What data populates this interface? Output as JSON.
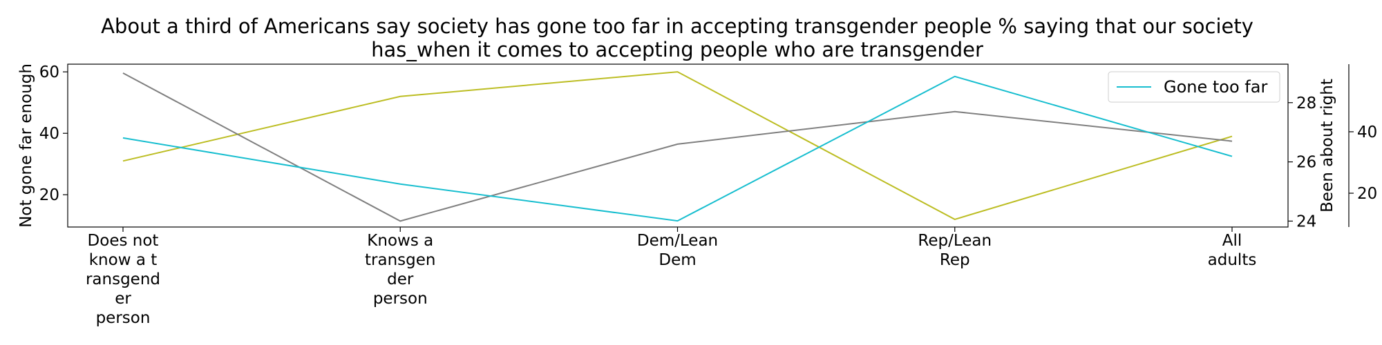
{
  "chart_data": {
    "type": "line",
    "title_lines": [
      "About a third of Americans say society has gone too far in accepting transgender people % saying that our society",
      "has_when it comes to accepting people who are transgender"
    ],
    "categories": [
      [
        "Does not",
        "know a t",
        "ransgend",
        "er",
        "person"
      ],
      [
        "Knows a",
        "transgen",
        "der",
        "person"
      ],
      [
        "Dem/Lean",
        "Dem"
      ],
      [
        "Rep/Lean",
        "Rep"
      ],
      [
        "All",
        "adults"
      ]
    ],
    "axes": {
      "left": {
        "label": "Not gone far enough",
        "ylim": [
          9.5,
          62.5
        ],
        "ticks": [
          20,
          40,
          60
        ]
      },
      "right1": {
        "label": "Been about right",
        "ylim": [
          23.8,
          29.3
        ],
        "ticks": [
          24,
          26,
          28
        ]
      },
      "right2": {
        "label": "",
        "ylim": [
          9,
          62
        ],
        "ticks": [
          20,
          40
        ]
      }
    },
    "series": [
      {
        "name": "",
        "axis": "left",
        "color": "#bcbd22",
        "values": [
          31,
          52,
          60,
          12,
          39
        ]
      },
      {
        "name": "",
        "axis": "right1",
        "color": "#7f7f7f",
        "values": [
          29,
          24,
          26.6,
          27.7,
          26.7
        ]
      },
      {
        "name": "Gone too far",
        "axis": "right2",
        "color": "#17becf",
        "values": [
          38,
          23,
          11,
          58,
          32
        ]
      }
    ],
    "legend": {
      "position": "top-right",
      "entries": [
        "Gone too far"
      ]
    },
    "grid": false
  }
}
